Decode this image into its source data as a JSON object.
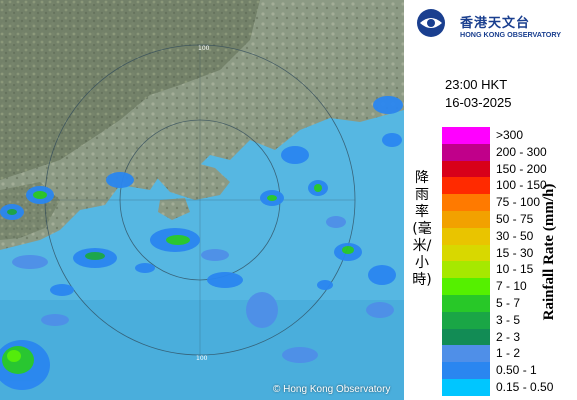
{
  "map": {
    "copyright": "© Hong Kong Observatory",
    "range_labels": [
      "100",
      "100"
    ]
  },
  "header": {
    "logo_cn": "香港天文台",
    "logo_en": "HONG KONG OBSERVATORY",
    "time": "23:00 HKT",
    "date": "16-03-2025"
  },
  "legend": {
    "title_cn": "降雨率(毫米/小時)",
    "title_en": "Rainfall Rate (mm/h)",
    "items": [
      {
        "label": ">300",
        "color": "#ff00ff"
      },
      {
        "label": "200 - 300",
        "color": "#c0008a"
      },
      {
        "label": "150 - 200",
        "color": "#d8001a"
      },
      {
        "label": "100 - 150",
        "color": "#ff2a00"
      },
      {
        "label": "75 - 100",
        "color": "#ff7a00"
      },
      {
        "label": "50 - 75",
        "color": "#f2a100"
      },
      {
        "label": "30 - 50",
        "color": "#e9c400"
      },
      {
        "label": "15 - 30",
        "color": "#d8d800"
      },
      {
        "label": "10 - 15",
        "color": "#a6e800"
      },
      {
        "label": "7 - 10",
        "color": "#55f000"
      },
      {
        "label": "5 - 7",
        "color": "#28c828"
      },
      {
        "label": "3 - 5",
        "color": "#1aa646"
      },
      {
        "label": "2 - 3",
        "color": "#128c55"
      },
      {
        "label": "1 - 2",
        "color": "#4f8fe8"
      },
      {
        "label": "0.50 - 1",
        "color": "#2a86f0"
      },
      {
        "label": "0.15 - 0.50",
        "color": "#00c6ff"
      }
    ]
  }
}
